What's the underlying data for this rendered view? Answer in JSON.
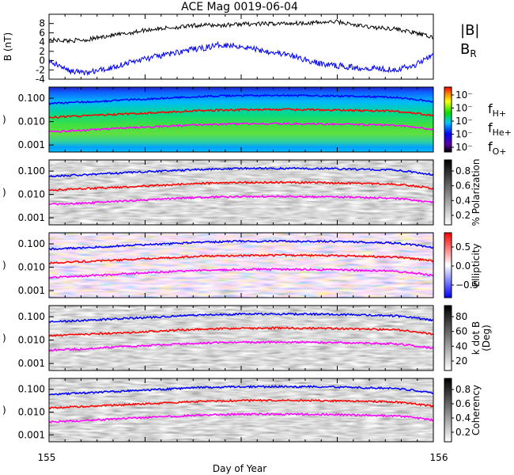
{
  "title": "ACE Mag 0019-06-04",
  "chart_data": [
    {
      "type": "line",
      "ylabel": "B (nT)",
      "ylim": [
        -4,
        10
      ],
      "yticks": [
        -4,
        -2,
        0,
        2,
        4,
        6,
        8
      ],
      "xlim": [
        155,
        156
      ],
      "series": [
        {
          "name": "|B|",
          "color": "#000000",
          "x": [
            155.0,
            155.05,
            155.1,
            155.15,
            155.2,
            155.25,
            155.3,
            155.35,
            155.4,
            155.45,
            155.5,
            155.55,
            155.6,
            155.65,
            155.7,
            155.75,
            155.8,
            155.85,
            155.9,
            155.95,
            156.0
          ],
          "values": [
            4.5,
            4.3,
            4.5,
            5.3,
            5.8,
            6.6,
            7.0,
            7.3,
            7.7,
            7.6,
            7.9,
            7.9,
            8.0,
            8.1,
            8.2,
            8.4,
            7.6,
            7.1,
            6.9,
            6.0,
            5.0
          ]
        },
        {
          "name": "B_R",
          "color": "#0000ff",
          "x": [
            155.0,
            155.05,
            155.1,
            155.15,
            155.2,
            155.25,
            155.3,
            155.35,
            155.4,
            155.45,
            155.5,
            155.55,
            155.6,
            155.65,
            155.7,
            155.75,
            155.8,
            155.85,
            155.9,
            155.95,
            156.0
          ],
          "values": [
            0.0,
            -2.2,
            -2.6,
            -1.8,
            -0.6,
            0.4,
            1.2,
            2.1,
            2.7,
            3.5,
            3.1,
            2.3,
            1.6,
            0.6,
            -0.6,
            -1.1,
            -1.5,
            -1.6,
            -1.9,
            -1.1,
            1.6
          ]
        }
      ]
    },
    {
      "type": "heatmap",
      "colorbar": "rainbow",
      "colorbar_ticks": [
        "10⁻",
        "10⁻",
        "10⁻",
        "10⁻",
        "10⁻"
      ],
      "ylim": [
        0.0005,
        0.3
      ],
      "yscale": "log",
      "yticks": [
        "0.100",
        "0.010",
        "0.001"
      ],
      "series": [
        {
          "name": "f_H+",
          "color": "#0000ff",
          "values": [
            0.06,
            0.07,
            0.085,
            0.1,
            0.12,
            0.13,
            0.13,
            0.13,
            0.12,
            0.11,
            0.07
          ]
        },
        {
          "name": "f_He+",
          "color": "#ff0000",
          "values": [
            0.015,
            0.018,
            0.021,
            0.025,
            0.03,
            0.032,
            0.033,
            0.032,
            0.03,
            0.028,
            0.018
          ]
        },
        {
          "name": "f_O+",
          "color": "#ff00ff",
          "values": [
            0.0037,
            0.0043,
            0.0053,
            0.0063,
            0.0075,
            0.0081,
            0.0082,
            0.008,
            0.0075,
            0.0069,
            0.0045
          ]
        }
      ]
    },
    {
      "type": "heatmap",
      "colorbar": "grayscale",
      "colorbar_label": "% Polarization",
      "colorbar_ticks": [
        "0.8",
        "0.6",
        "0.4",
        "0.2"
      ],
      "ylim": [
        0.0005,
        0.3
      ],
      "yscale": "log",
      "yticks": [
        "0.100",
        "0.010",
        "0.001"
      ]
    },
    {
      "type": "heatmap",
      "colorbar": "blue-white-red",
      "colorbar_label": "Ellipticity",
      "colorbar_ticks": [
        "0.5",
        "0.0",
        "−0.5"
      ],
      "ylim": [
        0.0005,
        0.3
      ],
      "yscale": "log",
      "yticks": [
        "0.100",
        "0.010",
        "0.001"
      ]
    },
    {
      "type": "heatmap",
      "colorbar": "grayscale",
      "colorbar_label": "k dot B (Deg)",
      "colorbar_ticks": [
        "80",
        "60",
        "40",
        "20"
      ],
      "ylim": [
        0.0005,
        0.3
      ],
      "yscale": "log",
      "yticks": [
        "0.100",
        "0.010",
        "0.001"
      ]
    },
    {
      "type": "heatmap",
      "colorbar": "grayscale",
      "colorbar_label": "Coherency",
      "colorbar_ticks": [
        "0.8",
        "0.6",
        "0.4",
        "0.2"
      ],
      "ylim": [
        0.0005,
        0.3
      ],
      "yscale": "log",
      "yticks": [
        "0.100",
        "0.010",
        "0.001"
      ]
    }
  ],
  "xaxis": {
    "label": "Day of Year",
    "ticks": [
      "155",
      "156"
    ]
  },
  "legend": {
    "top": [
      {
        "label": "|B|",
        "color": "#000000"
      },
      {
        "label": "B",
        "sub": "R",
        "color": "#0000ff"
      }
    ],
    "freq": [
      {
        "label": "f",
        "sub": "H+",
        "color": "#0000ff"
      },
      {
        "label": "f",
        "sub": "He+",
        "color": "#ff0000"
      },
      {
        "label": "f",
        "sub": "O+",
        "color": "#ff00ff"
      }
    ]
  },
  "y_label_fragment": ")"
}
